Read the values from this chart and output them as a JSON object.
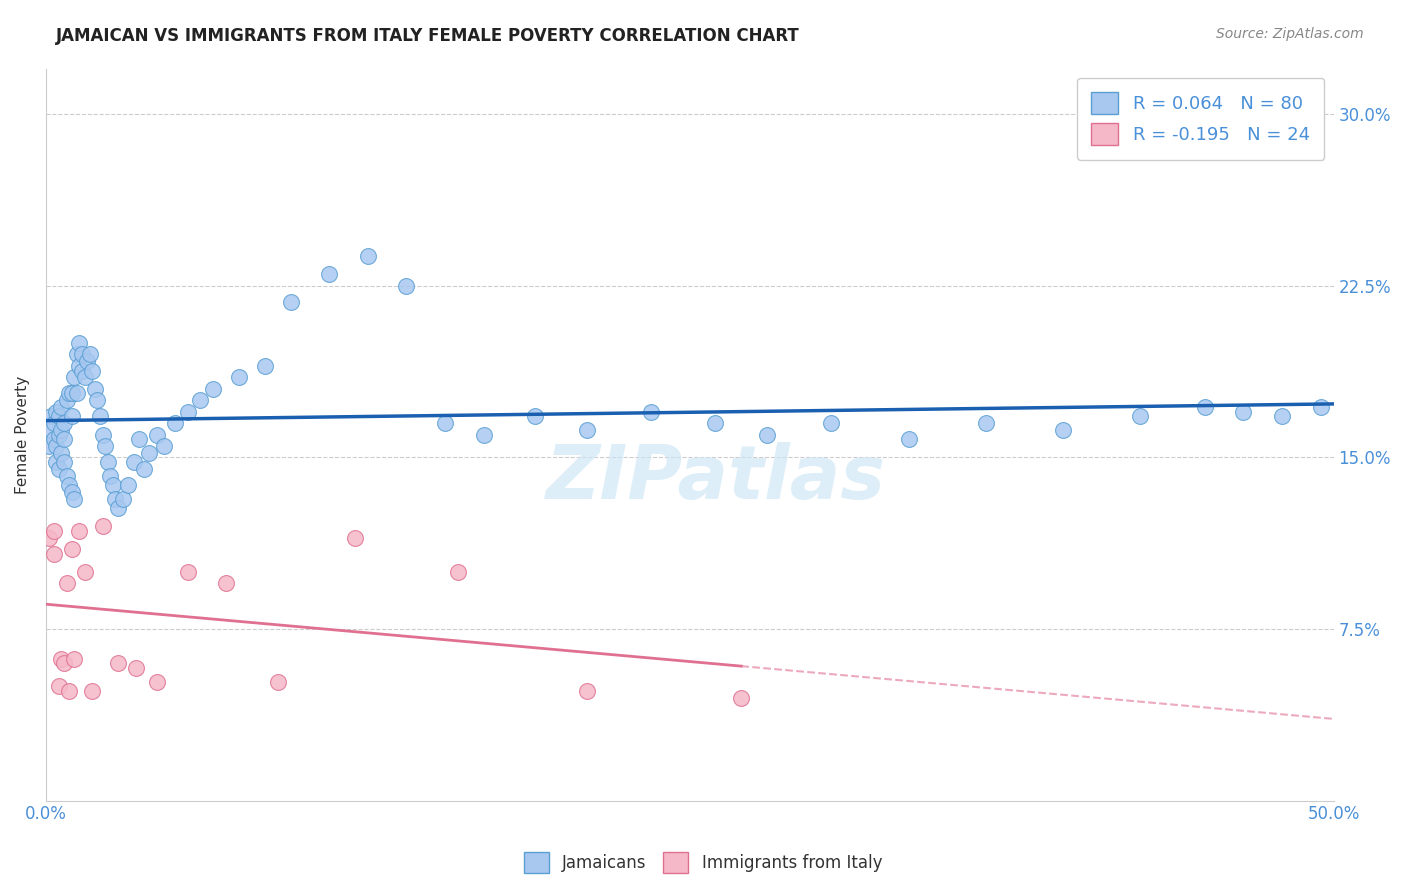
{
  "title": "JAMAICAN VS IMMIGRANTS FROM ITALY FEMALE POVERTY CORRELATION CHART",
  "source": "Source: ZipAtlas.com",
  "ylabel": "Female Poverty",
  "x_min": 0.0,
  "x_max": 0.5,
  "y_min": 0.0,
  "y_max": 0.32,
  "x_tick_positions": [
    0.0,
    0.1,
    0.2,
    0.3,
    0.4,
    0.5
  ],
  "x_tick_labels_show": [
    "0.0%",
    "",
    "",
    "",
    "",
    "50.0%"
  ],
  "y_ticks": [
    0.075,
    0.15,
    0.225,
    0.3
  ],
  "y_tick_labels": [
    "7.5%",
    "15.0%",
    "22.5%",
    "30.0%"
  ],
  "jamaican_color": "#a8c8f0",
  "italian_color": "#f5b8c8",
  "jamaican_edge_color": "#5a9fd4",
  "italian_edge_color": "#e07090",
  "jamaican_line_color": "#1a5fb0",
  "italian_line_color": "#e07090",
  "jamaican_R": 0.064,
  "jamaican_N": 80,
  "italian_R": -0.195,
  "italian_N": 24,
  "bottom_legend_jamaicans": "Jamaicans",
  "bottom_legend_italians": "Immigrants from Italy",
  "watermark": "ZIPatlas",
  "jam_x": [
    0.001,
    0.002,
    0.002,
    0.003,
    0.003,
    0.004,
    0.004,
    0.004,
    0.005,
    0.005,
    0.005,
    0.006,
    0.006,
    0.006,
    0.007,
    0.007,
    0.007,
    0.008,
    0.008,
    0.009,
    0.009,
    0.01,
    0.01,
    0.01,
    0.011,
    0.011,
    0.012,
    0.012,
    0.013,
    0.013,
    0.014,
    0.014,
    0.015,
    0.016,
    0.017,
    0.018,
    0.019,
    0.02,
    0.021,
    0.022,
    0.023,
    0.024,
    0.025,
    0.026,
    0.027,
    0.028,
    0.03,
    0.032,
    0.034,
    0.036,
    0.038,
    0.04,
    0.043,
    0.046,
    0.05,
    0.055,
    0.06,
    0.065,
    0.075,
    0.085,
    0.095,
    0.11,
    0.125,
    0.14,
    0.155,
    0.17,
    0.19,
    0.21,
    0.235,
    0.26,
    0.28,
    0.305,
    0.335,
    0.365,
    0.395,
    0.425,
    0.45,
    0.465,
    0.48,
    0.495
  ],
  "jam_y": [
    0.155,
    0.162,
    0.168,
    0.158,
    0.165,
    0.148,
    0.155,
    0.17,
    0.145,
    0.16,
    0.168,
    0.152,
    0.162,
    0.172,
    0.148,
    0.158,
    0.165,
    0.142,
    0.175,
    0.138,
    0.178,
    0.135,
    0.168,
    0.178,
    0.132,
    0.185,
    0.178,
    0.195,
    0.19,
    0.2,
    0.188,
    0.195,
    0.185,
    0.192,
    0.195,
    0.188,
    0.18,
    0.175,
    0.168,
    0.16,
    0.155,
    0.148,
    0.142,
    0.138,
    0.132,
    0.128,
    0.132,
    0.138,
    0.148,
    0.158,
    0.145,
    0.152,
    0.16,
    0.155,
    0.165,
    0.17,
    0.175,
    0.18,
    0.185,
    0.19,
    0.218,
    0.23,
    0.238,
    0.225,
    0.165,
    0.16,
    0.168,
    0.162,
    0.17,
    0.165,
    0.16,
    0.165,
    0.158,
    0.165,
    0.162,
    0.168,
    0.172,
    0.17,
    0.168,
    0.172
  ],
  "ita_x": [
    0.001,
    0.003,
    0.003,
    0.005,
    0.006,
    0.007,
    0.008,
    0.009,
    0.01,
    0.011,
    0.013,
    0.015,
    0.018,
    0.022,
    0.028,
    0.035,
    0.043,
    0.055,
    0.07,
    0.09,
    0.12,
    0.16,
    0.21,
    0.27
  ],
  "ita_y": [
    0.115,
    0.108,
    0.118,
    0.05,
    0.062,
    0.06,
    0.095,
    0.048,
    0.11,
    0.062,
    0.118,
    0.1,
    0.048,
    0.12,
    0.06,
    0.058,
    0.052,
    0.1,
    0.095,
    0.052,
    0.115,
    0.1,
    0.048,
    0.045
  ]
}
